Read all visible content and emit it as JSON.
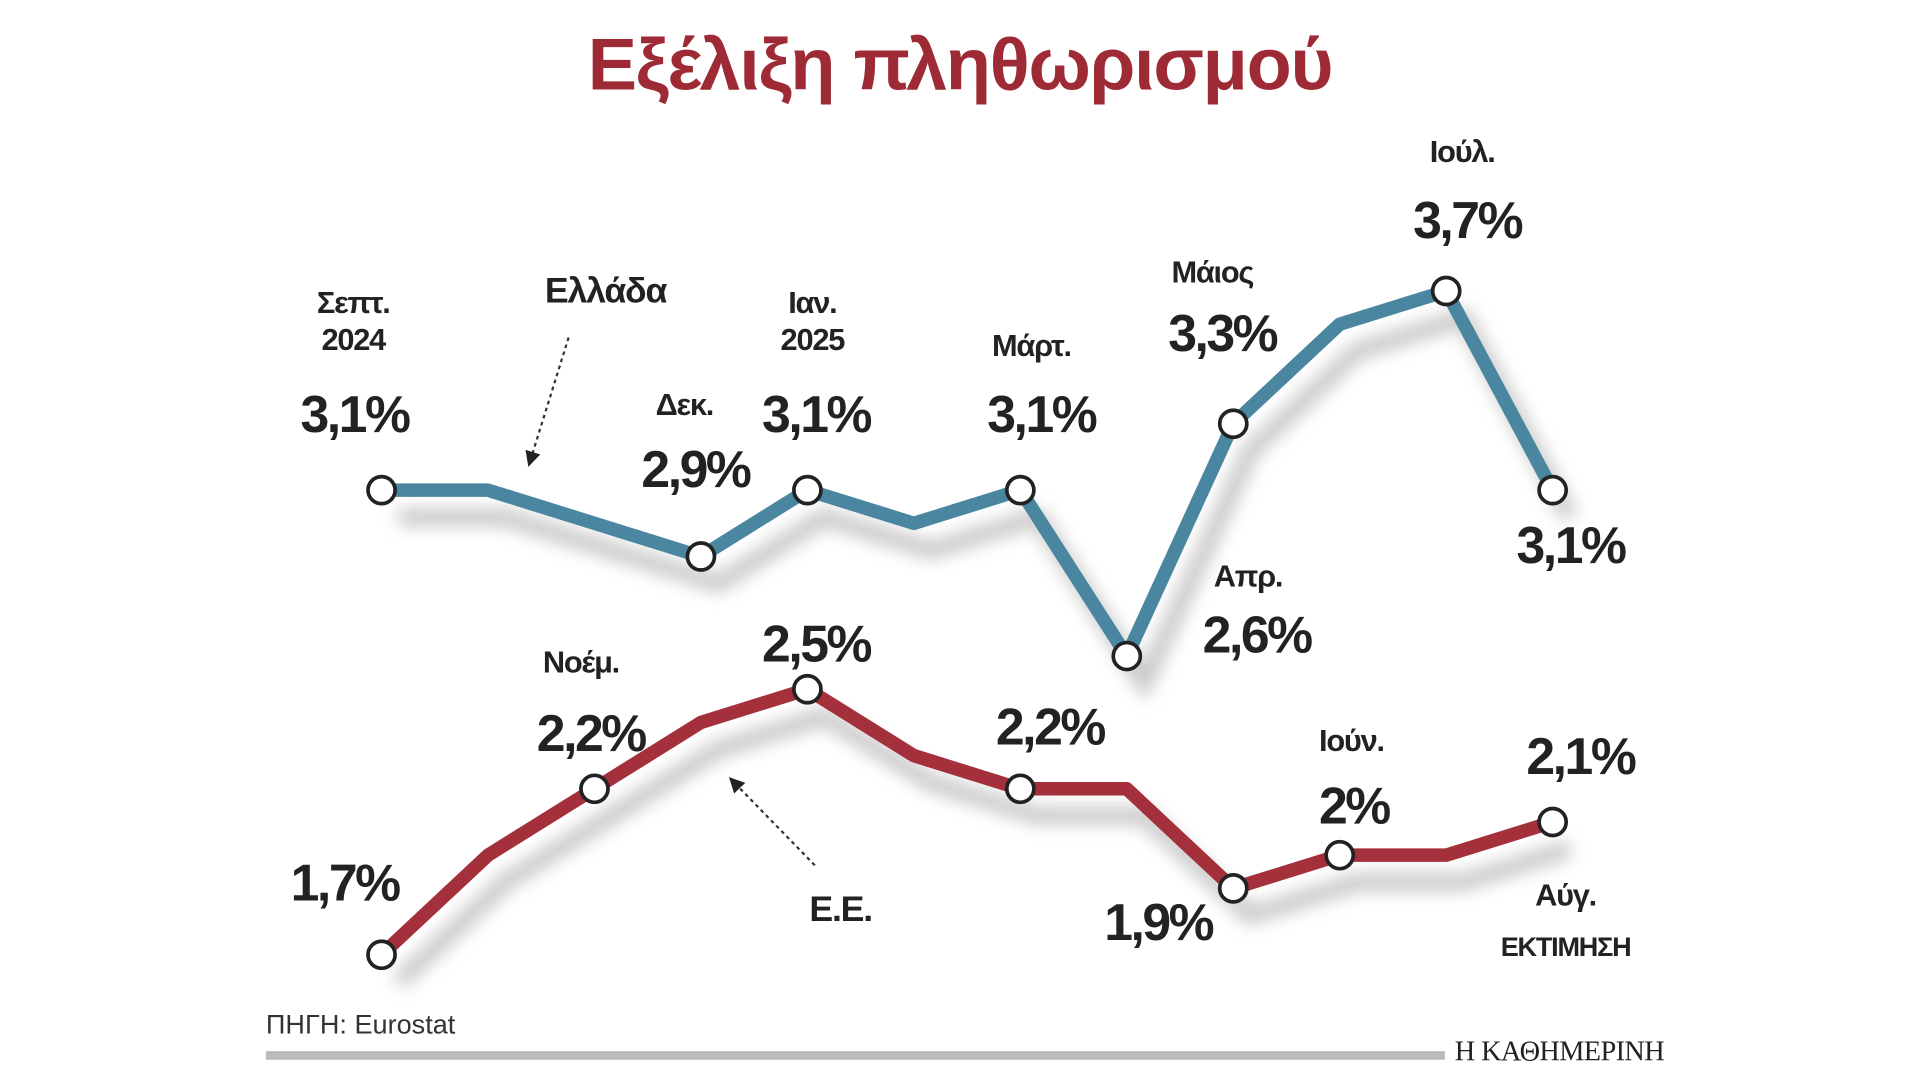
{
  "chart_data": {
    "type": "line",
    "title": "Εξέλιξη πληθωρισμού",
    "categories": [
      "Σεπτ.\n2024",
      null,
      "Νοέμ.",
      "Δεκ.",
      "Ιαν.\n2025",
      null,
      "Μάρτ.",
      "Απρ.",
      "Μάιος",
      "Ιούν.",
      "Ιούλ.",
      "Αύγ."
    ],
    "ylim": [
      1.5,
      4.0
    ],
    "series": [
      {
        "name": "Ελλάδα",
        "color": "#4a86a0",
        "values": [
          3.1,
          3.1,
          3.0,
          2.9,
          3.1,
          3.0,
          3.1,
          2.6,
          3.3,
          3.6,
          3.7,
          3.1
        ],
        "value_labels": [
          "3,1%",
          null,
          null,
          "2,9%",
          "3,1%",
          null,
          "3,1%",
          "2,6%",
          "3,3%",
          null,
          "3,7%",
          "3,1%"
        ]
      },
      {
        "name": "Ε.Ε.",
        "color": "#a3303a",
        "values": [
          1.7,
          2.0,
          2.2,
          2.4,
          2.5,
          2.3,
          2.2,
          2.2,
          1.9,
          2.0,
          2.0,
          2.1
        ],
        "value_labels": [
          "1,7%",
          null,
          "2,2%",
          null,
          "2,5%",
          null,
          "2,2%",
          null,
          "1,9%",
          "2%",
          null,
          "2,1%"
        ]
      }
    ],
    "annotations": [
      "ΕΚΤΙΜΗΣΗ"
    ],
    "source": "ΠΗΓΗ: Eurostat",
    "brand": "Η ΚΑΘΗΜΕΡΙΝΗ"
  }
}
